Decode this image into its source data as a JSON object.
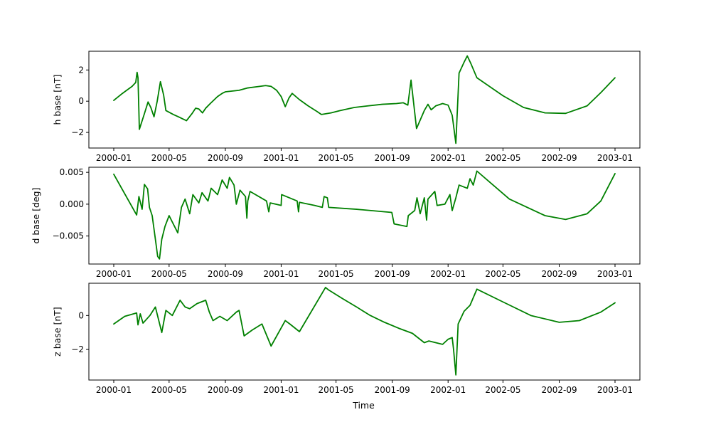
{
  "chart_data": [
    {
      "type": "line",
      "ylabel": "h base [nT]",
      "xlabel": "",
      "xlim": [
        "2000-01",
        "2003-01"
      ],
      "ylim": [
        -3.0,
        3.2
      ],
      "yticks": [
        -2,
        0,
        2
      ],
      "ytick_labels": [
        "−2",
        "0",
        "2"
      ],
      "xticks": [
        "2000-01",
        "2000-05",
        "2000-09",
        "2001-01",
        "2001-05",
        "2001-09",
        "2002-01",
        "2002-05",
        "2002-09",
        "2003-01"
      ],
      "color": "#008000",
      "series": [
        {
          "points": [
            [
              "2000-01-01",
              0.05
            ],
            [
              "2000-01-20",
              0.5
            ],
            [
              "2000-02-10",
              0.95
            ],
            [
              "2000-02-18",
              1.2
            ],
            [
              "2000-02-21",
              1.85
            ],
            [
              "2000-02-23",
              1.5
            ],
            [
              "2000-02-26",
              -1.8
            ],
            [
              "2000-03-08",
              -0.8
            ],
            [
              "2000-03-16",
              -0.05
            ],
            [
              "2000-03-22",
              -0.4
            ],
            [
              "2000-03-29",
              -1.0
            ],
            [
              "2000-04-05",
              0.0
            ],
            [
              "2000-04-12",
              1.25
            ],
            [
              "2000-04-19",
              0.4
            ],
            [
              "2000-04-24",
              -0.6
            ],
            [
              "2000-05-10",
              -0.85
            ],
            [
              "2000-05-25",
              -1.05
            ],
            [
              "2000-06-08",
              -1.25
            ],
            [
              "2000-06-20",
              -0.8
            ],
            [
              "2000-06-28",
              -0.45
            ],
            [
              "2000-07-05",
              -0.5
            ],
            [
              "2000-07-13",
              -0.75
            ],
            [
              "2000-07-20",
              -0.45
            ],
            [
              "2000-07-30",
              -0.15
            ],
            [
              "2000-08-15",
              0.3
            ],
            [
              "2000-08-25",
              0.5
            ],
            [
              "2000-09-01",
              0.6
            ],
            [
              "2000-10-01",
              0.7
            ],
            [
              "2000-10-20",
              0.85
            ],
            [
              "2000-11-15",
              0.95
            ],
            [
              "2000-11-28",
              1.0
            ],
            [
              "2000-12-10",
              0.95
            ],
            [
              "2000-12-22",
              0.7
            ],
            [
              "2001-01-01",
              0.3
            ],
            [
              "2001-01-10",
              -0.35
            ],
            [
              "2001-01-18",
              0.2
            ],
            [
              "2001-01-25",
              0.5
            ],
            [
              "2001-02-10",
              0.1
            ],
            [
              "2001-03-01",
              -0.3
            ],
            [
              "2001-03-20",
              -0.65
            ],
            [
              "2001-03-30",
              -0.85
            ],
            [
              "2001-04-20",
              -0.75
            ],
            [
              "2001-05-10",
              -0.6
            ],
            [
              "2001-06-10",
              -0.4
            ],
            [
              "2001-07-10",
              -0.3
            ],
            [
              "2001-08-10",
              -0.2
            ],
            [
              "2001-09-10",
              -0.15
            ],
            [
              "2001-09-25",
              -0.1
            ],
            [
              "2001-10-05",
              -0.25
            ],
            [
              "2001-10-12",
              1.35
            ],
            [
              "2001-10-24",
              -1.75
            ],
            [
              "2001-11-10",
              -0.6
            ],
            [
              "2001-11-18",
              -0.2
            ],
            [
              "2001-11-25",
              -0.55
            ],
            [
              "2001-12-05",
              -0.3
            ],
            [
              "2001-12-20",
              -0.15
            ],
            [
              "2002-01-01",
              -0.25
            ],
            [
              "2002-01-10",
              -0.9
            ],
            [
              "2002-01-18",
              -2.7
            ],
            [
              "2002-01-25",
              1.8
            ],
            [
              "2002-02-05",
              2.5
            ],
            [
              "2002-02-12",
              2.9
            ],
            [
              "2002-02-20",
              2.4
            ],
            [
              "2002-03-05",
              1.5
            ],
            [
              "2002-05-01",
              0.35
            ],
            [
              "2002-06-15",
              -0.4
            ],
            [
              "2002-08-01",
              -0.75
            ],
            [
              "2002-09-15",
              -0.78
            ],
            [
              "2002-11-01",
              -0.3
            ],
            [
              "2002-12-01",
              0.55
            ],
            [
              "2003-01-01",
              1.5
            ]
          ]
        }
      ]
    },
    {
      "type": "line",
      "ylabel": "d base [deg]",
      "xlabel": "",
      "xlim": [
        "2000-01",
        "2003-01"
      ],
      "ylim": [
        -0.0094,
        0.0058
      ],
      "yticks": [
        -0.005,
        0.0,
        0.005
      ],
      "ytick_labels": [
        "−0.005",
        "0.000",
        "0.005"
      ],
      "xticks": [
        "2000-01",
        "2000-05",
        "2000-09",
        "2001-01",
        "2001-05",
        "2001-09",
        "2002-01",
        "2002-05",
        "2002-09",
        "2003-01"
      ],
      "color": "#008000",
      "series": [
        {
          "points": [
            [
              "2000-01-01",
              0.0047
            ],
            [
              "2000-02-20",
              -0.0017
            ],
            [
              "2000-02-25",
              0.0012
            ],
            [
              "2000-03-03",
              -0.0008
            ],
            [
              "2000-03-08",
              0.0031
            ],
            [
              "2000-03-15",
              0.0024
            ],
            [
              "2000-03-19",
              -0.0005
            ],
            [
              "2000-03-25",
              -0.0018
            ],
            [
              "2000-04-01",
              -0.0055
            ],
            [
              "2000-04-06",
              -0.0082
            ],
            [
              "2000-04-10",
              -0.0086
            ],
            [
              "2000-04-15",
              -0.0055
            ],
            [
              "2000-04-22",
              -0.0035
            ],
            [
              "2000-05-01",
              -0.0018
            ],
            [
              "2000-05-20",
              -0.0045
            ],
            [
              "2000-05-28",
              -0.0005
            ],
            [
              "2000-06-05",
              0.0008
            ],
            [
              "2000-06-15",
              -0.0015
            ],
            [
              "2000-06-22",
              0.0015
            ],
            [
              "2000-07-05",
              0.0002
            ],
            [
              "2000-07-12",
              0.0018
            ],
            [
              "2000-07-25",
              0.0005
            ],
            [
              "2000-08-01",
              0.0025
            ],
            [
              "2000-08-15",
              0.0015
            ],
            [
              "2000-08-25",
              0.0038
            ],
            [
              "2000-09-05",
              0.0025
            ],
            [
              "2000-09-10",
              0.0042
            ],
            [
              "2000-09-20",
              0.003
            ],
            [
              "2000-09-25",
              0.0
            ],
            [
              "2000-10-03",
              0.0022
            ],
            [
              "2000-10-15",
              0.0012
            ],
            [
              "2000-10-18",
              -0.0022
            ],
            [
              "2000-10-20",
              0.0005
            ],
            [
              "2000-10-25",
              0.002
            ],
            [
              "2000-11-30",
              0.0005
            ],
            [
              "2000-12-05",
              -0.0012
            ],
            [
              "2000-12-08",
              0.0002
            ],
            [
              "2001-01-01",
              -0.0002
            ],
            [
              "2001-01-02",
              0.0015
            ],
            [
              "2001-02-05",
              0.0005
            ],
            [
              "2001-02-08",
              -0.0012
            ],
            [
              "2001-02-10",
              0.0003
            ],
            [
              "2001-03-15",
              -0.0002
            ],
            [
              "2001-04-01",
              -0.0005
            ],
            [
              "2001-04-05",
              0.0012
            ],
            [
              "2001-04-12",
              0.001
            ],
            [
              "2001-04-15",
              -0.0005
            ],
            [
              "2001-06-15",
              -0.0008
            ],
            [
              "2001-08-31",
              -0.0013
            ],
            [
              "2001-09-05",
              -0.0031
            ],
            [
              "2001-10-03",
              -0.0035
            ],
            [
              "2001-10-06",
              -0.0018
            ],
            [
              "2001-10-20",
              -0.001
            ],
            [
              "2001-10-25",
              0.001
            ],
            [
              "2001-11-01",
              -0.0015
            ],
            [
              "2001-11-10",
              0.001
            ],
            [
              "2001-11-15",
              -0.0025
            ],
            [
              "2001-11-18",
              0.0008
            ],
            [
              "2001-12-03",
              0.002
            ],
            [
              "2001-12-08",
              -0.0002
            ],
            [
              "2001-12-25",
              0.0
            ],
            [
              "2002-01-05",
              0.0015
            ],
            [
              "2002-01-10",
              -0.001
            ],
            [
              "2002-01-18",
              0.001
            ],
            [
              "2002-01-25",
              0.003
            ],
            [
              "2002-02-12",
              0.0025
            ],
            [
              "2002-02-18",
              0.004
            ],
            [
              "2002-02-25",
              0.003
            ],
            [
              "2002-03-05",
              0.0052
            ],
            [
              "2002-05-15",
              0.0008
            ],
            [
              "2002-08-01",
              -0.0018
            ],
            [
              "2002-09-15",
              -0.0024
            ],
            [
              "2002-11-01",
              -0.0015
            ],
            [
              "2002-12-01",
              0.0005
            ],
            [
              "2003-01-01",
              0.0048
            ]
          ]
        }
      ]
    },
    {
      "type": "line",
      "ylabel": "z base [nT]",
      "xlabel": "Time",
      "xlim": [
        "2000-01",
        "2003-01"
      ],
      "ylim": [
        -3.8,
        1.9
      ],
      "yticks": [
        -2,
        0
      ],
      "ytick_labels": [
        "−2",
        "0"
      ],
      "xticks": [
        "2000-01",
        "2000-05",
        "2000-09",
        "2001-01",
        "2001-05",
        "2001-09",
        "2002-01",
        "2002-05",
        "2002-09",
        "2003-01"
      ],
      "color": "#008000",
      "series": [
        {
          "points": [
            [
              "2000-01-01",
              -0.5
            ],
            [
              "2000-01-25",
              -0.05
            ],
            [
              "2000-02-20",
              0.15
            ],
            [
              "2000-02-23",
              -0.55
            ],
            [
              "2000-02-28",
              0.1
            ],
            [
              "2000-03-05",
              -0.45
            ],
            [
              "2000-03-20",
              0.0
            ],
            [
              "2000-04-01",
              0.5
            ],
            [
              "2000-04-15",
              -1.0
            ],
            [
              "2000-04-24",
              0.3
            ],
            [
              "2000-05-08",
              0.0
            ],
            [
              "2000-05-25",
              0.9
            ],
            [
              "2000-06-05",
              0.5
            ],
            [
              "2000-06-15",
              0.4
            ],
            [
              "2000-07-01",
              0.7
            ],
            [
              "2000-07-20",
              0.9
            ],
            [
              "2000-07-28",
              0.2
            ],
            [
              "2000-08-05",
              -0.3
            ],
            [
              "2000-08-20",
              -0.05
            ],
            [
              "2000-09-05",
              -0.3
            ],
            [
              "2000-09-25",
              0.2
            ],
            [
              "2000-10-01",
              0.3
            ],
            [
              "2000-10-12",
              -1.2
            ],
            [
              "2000-10-30",
              -0.85
            ],
            [
              "2000-11-20",
              -0.5
            ],
            [
              "2000-12-10",
              -1.8
            ],
            [
              "2001-01-10",
              -0.3
            ],
            [
              "2001-01-20",
              -0.5
            ],
            [
              "2001-02-10",
              -0.95
            ],
            [
              "2001-04-08",
              1.65
            ],
            [
              "2001-04-15",
              1.5
            ],
            [
              "2001-05-15",
              1.0
            ],
            [
              "2001-06-15",
              0.5
            ],
            [
              "2001-07-15",
              0.0
            ],
            [
              "2001-08-15",
              -0.4
            ],
            [
              "2001-09-15",
              -0.75
            ],
            [
              "2001-10-15",
              -1.05
            ],
            [
              "2001-11-10",
              -1.6
            ],
            [
              "2001-11-20",
              -1.5
            ],
            [
              "2001-12-20",
              -1.7
            ],
            [
              "2002-01-01",
              -1.4
            ],
            [
              "2002-01-10",
              -1.3
            ],
            [
              "2002-01-13",
              -2.0
            ],
            [
              "2002-01-18",
              -3.5
            ],
            [
              "2002-01-23",
              -0.5
            ],
            [
              "2002-02-05",
              0.25
            ],
            [
              "2002-02-18",
              0.6
            ],
            [
              "2002-03-05",
              1.55
            ],
            [
              "2002-05-01",
              0.8
            ],
            [
              "2002-07-01",
              0.0
            ],
            [
              "2002-09-01",
              -0.4
            ],
            [
              "2002-10-15",
              -0.3
            ],
            [
              "2002-12-01",
              0.2
            ],
            [
              "2003-01-01",
              0.75
            ]
          ]
        }
      ]
    }
  ]
}
